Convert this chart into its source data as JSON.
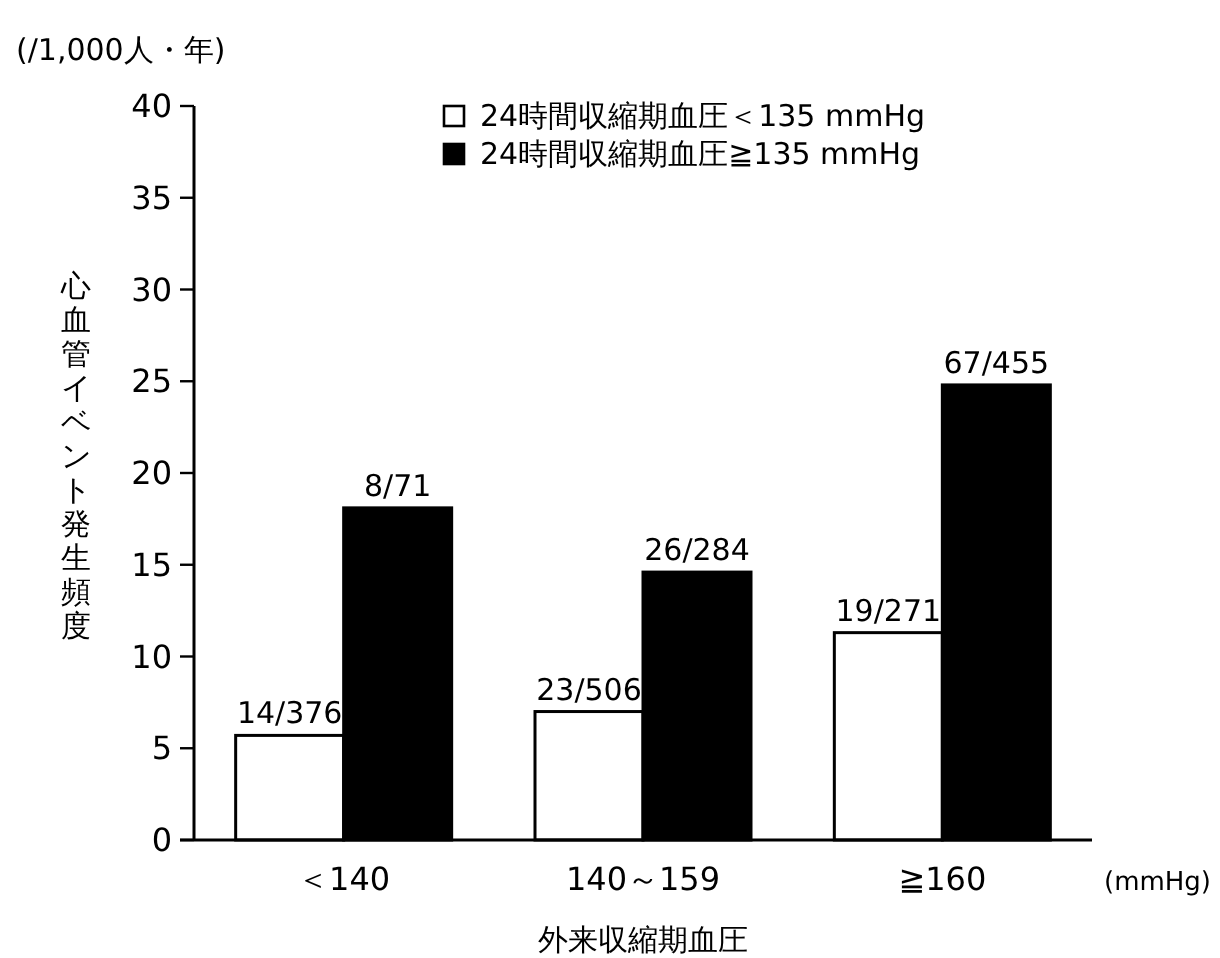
{
  "chart_data": {
    "type": "bar",
    "xlabel": "外来収縮期血圧",
    "ylabel": "心血管イベント発生頻度",
    "annotations": [
      "(/1,000人・年)",
      "(mmHg)"
    ],
    "categories": [
      "＜140",
      "140～159",
      "≧160"
    ],
    "series": [
      {
        "name": "24時間収縮期血圧＜135 mmHg",
        "color": "#ffffff",
        "values": [
          5.7,
          7.0,
          11.3
        ],
        "value_labels": [
          "14/376",
          "23/506",
          "19/271"
        ]
      },
      {
        "name": "24時間収縮期血圧≧135 mmHg",
        "color": "#000000",
        "values": [
          18.1,
          14.6,
          24.8
        ],
        "value_labels": [
          "8/71",
          "26/284",
          "67/455"
        ]
      }
    ],
    "ylim": [
      0,
      40
    ],
    "yticks": [
      0,
      5,
      10,
      15,
      20,
      25,
      30,
      35,
      40
    ],
    "grid": false,
    "legend": "top right"
  }
}
